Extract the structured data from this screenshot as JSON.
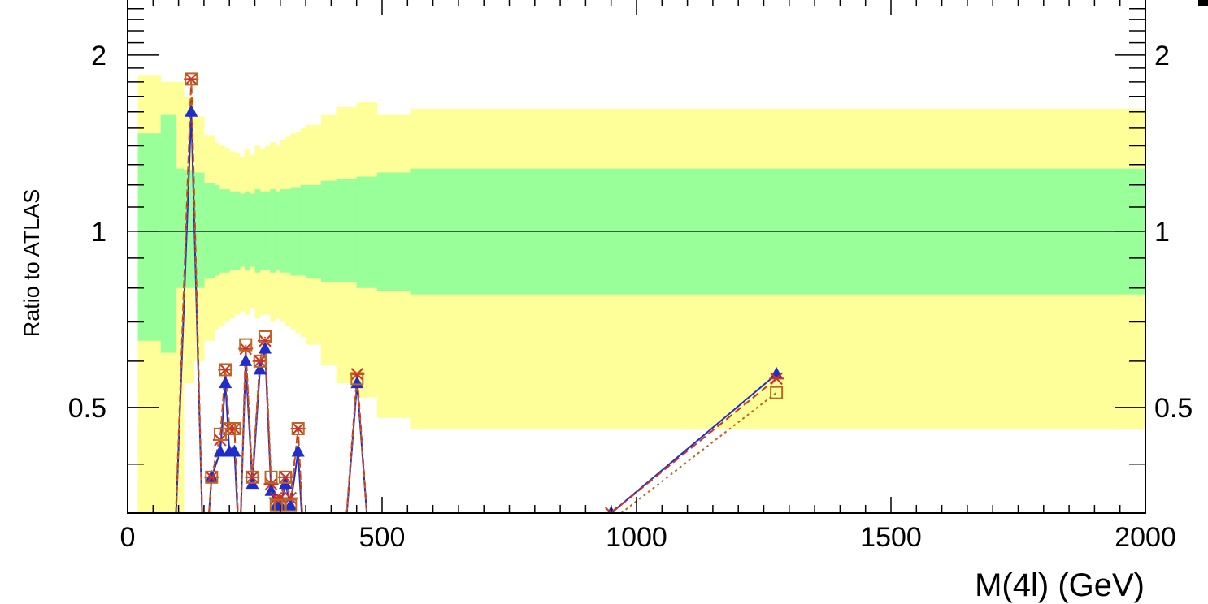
{
  "chart_data": {
    "type": "line",
    "title": "",
    "xlabel": "M(4l) (GeV)",
    "ylabel": "Ratio to ATLAS",
    "xlim": [
      0,
      2000
    ],
    "ylim": [
      0.33,
      2.5
    ],
    "y_log_scale": true,
    "grid": false,
    "x_ticks": [
      0,
      500,
      1000,
      1500,
      2000
    ],
    "y_ticks_left": [
      0.5,
      1,
      2
    ],
    "y_ticks_right": [
      0.5,
      1,
      2
    ],
    "x_tick_labels": [
      "0",
      "500",
      "1000",
      "1500",
      "2000"
    ],
    "y_tick_labels_left": [
      "0.5",
      "1",
      "2"
    ],
    "y_tick_labels_right": [
      "0.5",
      "1",
      "2"
    ],
    "reference_line": 1,
    "bands": {
      "bin_edges": [
        20,
        65,
        95,
        110,
        130,
        150,
        170,
        180,
        190,
        200,
        210,
        220,
        230,
        240,
        250,
        260,
        270,
        280,
        290,
        300,
        310,
        320,
        330,
        340,
        350,
        380,
        410,
        450,
        490,
        555,
        2000
      ],
      "inner_low": [
        0.65,
        0.62,
        0.8,
        0.8,
        0.8,
        0.83,
        0.84,
        0.85,
        0.85,
        0.86,
        0.86,
        0.87,
        0.86,
        0.87,
        0.85,
        0.86,
        0.86,
        0.85,
        0.86,
        0.85,
        0.85,
        0.84,
        0.84,
        0.84,
        0.83,
        0.82,
        0.82,
        0.8,
        0.79,
        0.78
      ],
      "inner_high": [
        1.47,
        1.58,
        1.28,
        1.27,
        1.26,
        1.21,
        1.2,
        1.18,
        1.18,
        1.17,
        1.17,
        1.16,
        1.17,
        1.16,
        1.18,
        1.17,
        1.17,
        1.18,
        1.17,
        1.18,
        1.18,
        1.19,
        1.19,
        1.2,
        1.2,
        1.22,
        1.23,
        1.24,
        1.26,
        1.28
      ],
      "outer_low": [
        0.33,
        0.33,
        0.33,
        0.55,
        0.6,
        0.65,
        0.68,
        0.69,
        0.7,
        0.71,
        0.72,
        0.73,
        0.72,
        0.74,
        0.71,
        0.72,
        0.72,
        0.7,
        0.71,
        0.7,
        0.69,
        0.68,
        0.67,
        0.66,
        0.64,
        0.59,
        0.55,
        0.52,
        0.48,
        0.46
      ],
      "outer_high": [
        1.85,
        1.8,
        1.8,
        1.7,
        1.57,
        1.46,
        1.42,
        1.4,
        1.39,
        1.37,
        1.36,
        1.34,
        1.38,
        1.35,
        1.4,
        1.38,
        1.4,
        1.42,
        1.4,
        1.43,
        1.45,
        1.47,
        1.48,
        1.5,
        1.52,
        1.58,
        1.63,
        1.66,
        1.58,
        1.62
      ],
      "inner_color": "#99ff99",
      "outer_color": "#ffff99"
    },
    "series": [
      {
        "style": "solid",
        "color": "#1f2dcc",
        "marker": "triangle",
        "x": [
          90,
          125,
          150,
          165,
          182,
          192,
          200,
          210,
          220,
          232,
          245,
          260,
          270,
          282,
          292,
          300,
          310,
          320,
          335,
          350,
          420,
          451,
          480,
          950,
          1275
        ],
        "y": [
          0.25,
          1.6,
          0.25,
          0.38,
          0.42,
          0.55,
          0.42,
          0.42,
          0.28,
          0.6,
          0.37,
          0.58,
          0.63,
          0.36,
          0.34,
          0.34,
          0.37,
          0.34,
          0.42,
          0.25,
          0.25,
          0.55,
          0.25,
          0.33,
          0.57
        ]
      },
      {
        "style": "dashed",
        "color": "#cc3322",
        "marker": "star",
        "x": [
          90,
          125,
          150,
          165,
          182,
          192,
          200,
          210,
          220,
          232,
          245,
          260,
          270,
          282,
          292,
          300,
          310,
          320,
          335,
          350,
          420,
          451,
          480,
          950,
          1275
        ],
        "y": [
          0.25,
          1.82,
          0.25,
          0.38,
          0.44,
          0.58,
          0.46,
          0.46,
          0.28,
          0.63,
          0.38,
          0.6,
          0.65,
          0.37,
          0.35,
          0.35,
          0.38,
          0.35,
          0.46,
          0.25,
          0.25,
          0.57,
          0.25,
          0.33,
          0.56
        ]
      },
      {
        "style": "dotted",
        "color": "#bb6622",
        "marker": "square",
        "x": [
          90,
          125,
          150,
          165,
          182,
          192,
          200,
          210,
          220,
          232,
          245,
          260,
          270,
          282,
          292,
          300,
          310,
          320,
          335,
          350,
          420,
          451,
          480,
          950,
          1275
        ],
        "y": [
          0.25,
          1.82,
          0.25,
          0.38,
          0.45,
          0.58,
          0.46,
          0.46,
          0.28,
          0.64,
          0.38,
          0.6,
          0.66,
          0.38,
          0.34,
          0.34,
          0.38,
          0.34,
          0.46,
          0.25,
          0.25,
          0.56,
          0.25,
          0.32,
          0.53
        ]
      }
    ]
  }
}
